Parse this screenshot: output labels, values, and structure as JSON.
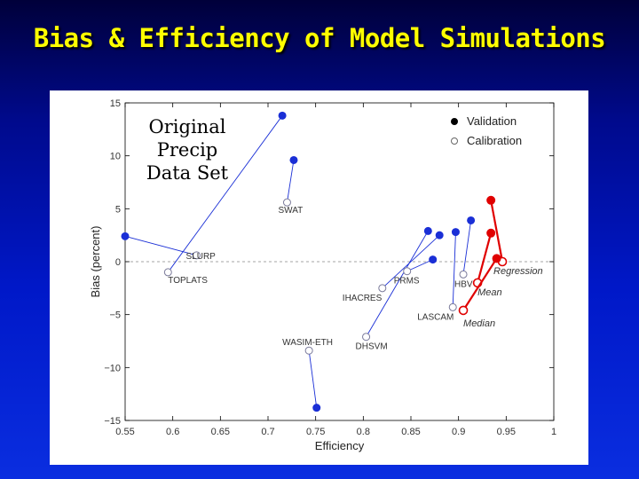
{
  "slide": {
    "title": "Bias & Efficiency of Model Simulations",
    "annotation": "Original\nPrecip\nData Set"
  },
  "colors": {
    "background": "#0018c8",
    "title": "#ffff00",
    "model_points": "#1a2fd6",
    "ensemble_points": "#e00000"
  },
  "chart_data": {
    "type": "scatter",
    "xlabel": "Efficiency",
    "ylabel": "Bias  (percent)",
    "xlim": [
      0.55,
      1
    ],
    "ylim": [
      -15,
      15
    ],
    "xticks": [
      "0.55",
      "0.6",
      "0.65",
      "0.7",
      "0.75",
      "0.8",
      "0.85",
      "0.9",
      "0.95",
      "1"
    ],
    "yticks": [
      "15",
      "10",
      "5",
      "0",
      "−5",
      "−10",
      "−15"
    ],
    "grid": false,
    "zero_line": true,
    "legend": {
      "position": "top-right",
      "entries": [
        {
          "label": "Validation",
          "marker": "filled"
        },
        {
          "label": "Calibration",
          "marker": "open"
        }
      ]
    },
    "models": [
      {
        "name": "SLURP",
        "color": "blue",
        "calibration": {
          "x": 0.625,
          "y": 0.6
        },
        "validation": {
          "x": 0.55,
          "y": 2.4
        }
      },
      {
        "name": "TOPLATS",
        "color": "blue",
        "calibration": {
          "x": 0.595,
          "y": -1.0
        },
        "validation": {
          "x": 0.715,
          "y": 13.8
        }
      },
      {
        "name": "SWAT",
        "color": "blue",
        "calibration": {
          "x": 0.72,
          "y": 5.6
        },
        "validation": {
          "x": 0.727,
          "y": 9.6
        }
      },
      {
        "name": "WASIM-ETH",
        "color": "blue",
        "calibration": {
          "x": 0.743,
          "y": -8.4
        },
        "validation": {
          "x": 0.751,
          "y": -13.8
        }
      },
      {
        "name": "DHSVM",
        "color": "blue",
        "calibration": {
          "x": 0.803,
          "y": -7.1
        },
        "validation": {
          "x": 0.868,
          "y": 2.9
        }
      },
      {
        "name": "IHACRES",
        "color": "blue",
        "calibration": {
          "x": 0.82,
          "y": -2.5
        },
        "validation": {
          "x": 0.88,
          "y": 2.5
        }
      },
      {
        "name": "PRMS",
        "color": "blue",
        "calibration": {
          "x": 0.846,
          "y": -0.9
        },
        "validation": {
          "x": 0.873,
          "y": 0.2
        }
      },
      {
        "name": "HBV",
        "color": "blue",
        "calibration": {
          "x": 0.905,
          "y": -1.2
        },
        "validation": {
          "x": 0.913,
          "y": 3.9
        }
      },
      {
        "name": "LASCAM",
        "color": "blue",
        "calibration": {
          "x": 0.894,
          "y": -4.3
        },
        "validation": {
          "x": 0.897,
          "y": 2.8
        }
      },
      {
        "name": "Regression",
        "color": "red",
        "calibration": {
          "x": 0.946,
          "y": 0.0
        },
        "validation": {
          "x": 0.934,
          "y": 5.8
        }
      },
      {
        "name": "Mean",
        "color": "red",
        "calibration": {
          "x": 0.92,
          "y": -2.0
        },
        "validation": {
          "x": 0.934,
          "y": 2.7
        }
      },
      {
        "name": "Median",
        "color": "red",
        "calibration": {
          "x": 0.905,
          "y": -4.6
        },
        "validation": {
          "x": 0.94,
          "y": 0.3
        }
      }
    ]
  }
}
